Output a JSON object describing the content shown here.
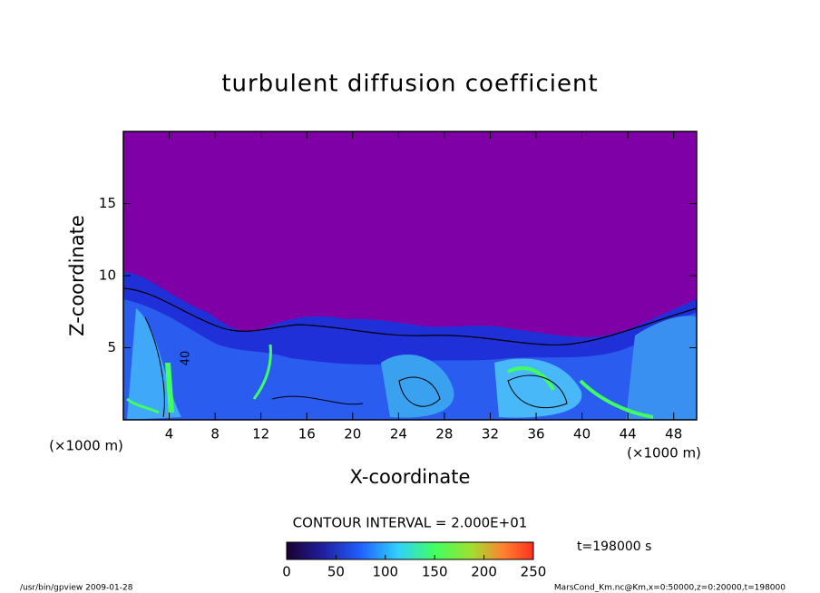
{
  "chart_data": {
    "type": "contour",
    "title": "turbulent diffusion coefficient",
    "xlabel": "X-coordinate",
    "ylabel": "Z-coordinate",
    "xunit": "(×1000 m)",
    "yunit": "(×1000 m)",
    "xlim": [
      0,
      50
    ],
    "ylim": [
      0,
      20
    ],
    "xticks": [
      4,
      8,
      12,
      16,
      20,
      24,
      28,
      32,
      36,
      40,
      44,
      48
    ],
    "yticks": [
      5,
      10,
      15
    ],
    "contour_label": "40",
    "contour_interval": "CONTOUR INTERVAL = 2.000E+01",
    "colorbar": {
      "lim": [
        0,
        250
      ],
      "ticks": [
        0,
        50,
        100,
        150,
        200,
        250
      ]
    },
    "time_label": "t=198000 s",
    "footer_left": "/usr/bin/gpview   2009-01-28",
    "footer_right": "MarsCond_Km.nc@Km,x=0:50000,z=0:20000,t=198000"
  }
}
